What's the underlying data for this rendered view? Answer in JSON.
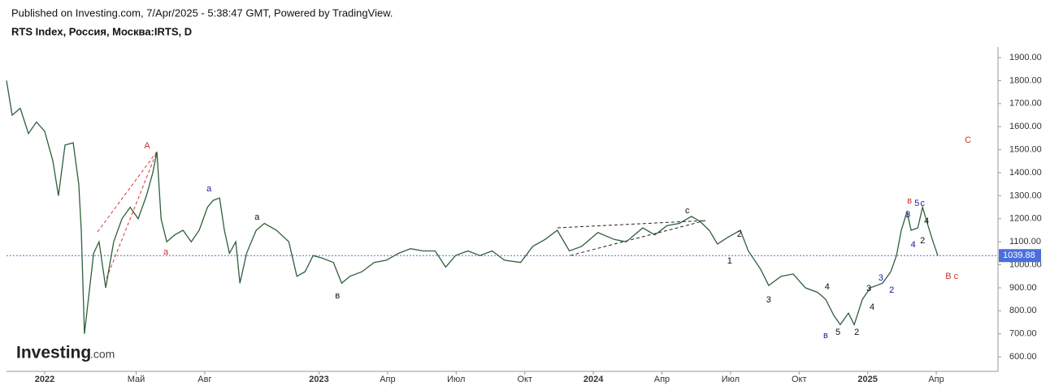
{
  "header": {
    "published": "Published on Investing.com, 7/Apr/2025 - 5:38:47 GMT, Powered by TradingView.",
    "symbol": "RTS Index, Россия, Москва:IRTS, D"
  },
  "watermark": [
    "Investing",
    ".com"
  ],
  "chart_data": {
    "type": "line",
    "x": [
      -1.67,
      -1.42,
      -1.07,
      -0.71,
      -0.36,
      0,
      0.36,
      0.6,
      0.89,
      1.25,
      1.49,
      1.6,
      1.74,
      1.89,
      2.14,
      2.38,
      2.67,
      3.02,
      3.38,
      3.74,
      4.09,
      4.45,
      4.73,
      4.91,
      5.09,
      5.34,
      5.69,
      6.05,
      6.41,
      6.76,
      7.12,
      7.37,
      7.65,
      7.86,
      8.08,
      8.36,
      8.54,
      8.83,
      9.25,
      9.61,
      10.14,
      10.68,
      11.03,
      11.39,
      11.74,
      12.1,
      12.63,
      12.99,
      13.35,
      13.88,
      14.41,
      14.95,
      15.48,
      16.01,
      16.55,
      17.08,
      17.54,
      17.97,
      18.51,
      19.04,
      19.57,
      20.11,
      20.82,
      21.35,
      21.89,
      22.42,
      22.95,
      23.49,
      24.2,
      24.91,
      25.44,
      26.16,
      26.69,
      27.22,
      27.76,
      28.29,
      28.65,
      29.07,
      29.43,
      29.89,
      30.43,
      30.78,
      31.32,
      31.67,
      32.21,
      32.74,
      33.27,
      33.81,
      34.16,
      34.52,
      34.8,
      35.16,
      35.41,
      35.77,
      36.12,
      36.65,
      37.01,
      37.26,
      37.47,
      37.72,
      37.9,
      38.19,
      38.4,
      38.61,
      38.86,
      39.07
    ],
    "series": [
      {
        "color": "#2f5f3a",
        "values": [
          1800,
          1650,
          1680,
          1570,
          1620,
          1580,
          1450,
          1300,
          1520,
          1530,
          1350,
          1150,
          700,
          830,
          1050,
          1100,
          900,
          1100,
          1200,
          1250,
          1200,
          1300,
          1400,
          1490,
          1200,
          1100,
          1130,
          1150,
          1100,
          1150,
          1250,
          1280,
          1290,
          1150,
          1050,
          1100,
          920,
          1050,
          1150,
          1180,
          1150,
          1100,
          950,
          970,
          1040,
          1030,
          1010,
          920,
          950,
          970,
          1010,
          1020,
          1050,
          1070,
          1060,
          1060,
          990,
          1040,
          1060,
          1040,
          1060,
          1020,
          1010,
          1080,
          1110,
          1150,
          1060,
          1080,
          1140,
          1110,
          1100,
          1160,
          1130,
          1170,
          1180,
          1210,
          1190,
          1150,
          1090,
          1120,
          1150,
          1060,
          980,
          910,
          950,
          960,
          900,
          880,
          850,
          780,
          740,
          790,
          740,
          850,
          900,
          920,
          970,
          1040,
          1150,
          1230,
          1150,
          1160,
          1250,
          1180,
          1100,
          1040
        ]
      }
    ],
    "xlim": [
      -1.67,
      41.7
    ],
    "xticks": [
      {
        "value": 0,
        "label": "2022"
      },
      {
        "value": 4,
        "label": "Май"
      },
      {
        "value": 7,
        "label": "Авг"
      },
      {
        "value": 12,
        "label": "2023"
      },
      {
        "value": 15,
        "label": "Апр"
      },
      {
        "value": 18,
        "label": "Июл"
      },
      {
        "value": 21,
        "label": "Окт"
      },
      {
        "value": 24,
        "label": "2024"
      },
      {
        "value": 27,
        "label": "Апр"
      },
      {
        "value": 30,
        "label": "Июл"
      },
      {
        "value": 33,
        "label": "Окт"
      },
      {
        "value": 36,
        "label": "2025"
      },
      {
        "value": 39,
        "label": "Апр"
      }
    ],
    "ylim": [
      537,
      1946
    ],
    "yticks": [
      {
        "value": 600,
        "label": "600.00"
      },
      {
        "value": 700,
        "label": "700.00"
      },
      {
        "value": 800,
        "label": "800.00"
      },
      {
        "value": 900,
        "label": "900.00"
      },
      {
        "value": 1000,
        "label": "1000.00"
      },
      {
        "value": 1100,
        "label": "1100.00"
      },
      {
        "value": 1200,
        "label": "1200.00"
      },
      {
        "value": 1300,
        "label": "1300.00"
      },
      {
        "value": 1400,
        "label": "1400.00"
      },
      {
        "value": 1500,
        "label": "1500.00"
      },
      {
        "value": 1600,
        "label": "1600.00"
      },
      {
        "value": 1700,
        "label": "1700.00"
      },
      {
        "value": 1800,
        "label": "1800.00"
      },
      {
        "value": 1900,
        "label": "1900.00"
      }
    ],
    "last_price": 1039.88,
    "last_price_color": "#4a6fdc",
    "annotations": [
      {
        "text": "A",
        "x": 4.48,
        "y": 1516,
        "color": "#d32f2f"
      },
      {
        "text": "a",
        "x": 5.3,
        "y": 1055,
        "color": "#d32f2f"
      },
      {
        "text": "a",
        "x": 7.19,
        "y": 1330,
        "color": "#1a1aa8"
      },
      {
        "text": "a",
        "x": 9.29,
        "y": 1206,
        "color": "#111111"
      },
      {
        "text": "в",
        "x": 12.81,
        "y": 865,
        "color": "#111111"
      },
      {
        "text": "c",
        "x": 28.11,
        "y": 1234,
        "color": "#111111"
      },
      {
        "text": "1",
        "x": 29.96,
        "y": 1016,
        "color": "#111111"
      },
      {
        "text": "2",
        "x": 30.39,
        "y": 1132,
        "color": "#111111"
      },
      {
        "text": "3",
        "x": 31.67,
        "y": 847,
        "color": "#111111"
      },
      {
        "text": "4",
        "x": 34.23,
        "y": 903,
        "color": "#111111"
      },
      {
        "text": "в",
        "x": 34.16,
        "y": 692,
        "color": "#1a1aa8"
      },
      {
        "text": "5",
        "x": 34.7,
        "y": 706,
        "color": "#111111"
      },
      {
        "text": "2",
        "x": 35.52,
        "y": 706,
        "color": "#111111"
      },
      {
        "text": "3",
        "x": 36.05,
        "y": 896,
        "color": "#111111"
      },
      {
        "text": "4",
        "x": 36.19,
        "y": 815,
        "color": "#111111"
      },
      {
        "text": "3",
        "x": 36.58,
        "y": 942,
        "color": "#1a1aa8"
      },
      {
        "text": "2",
        "x": 37.05,
        "y": 889,
        "color": "#1a1aa8"
      },
      {
        "text": "4",
        "x": 37.99,
        "y": 1087,
        "color": "#1a1aa8"
      },
      {
        "text": "3",
        "x": 37.76,
        "y": 1217,
        "color": "#1a1aa8"
      },
      {
        "text": "в",
        "x": 37.83,
        "y": 1277,
        "color": "#d32f2f"
      },
      {
        "text": "5",
        "x": 38.15,
        "y": 1266,
        "color": "#1a1aa8"
      },
      {
        "text": "c",
        "x": 38.4,
        "y": 1266,
        "color": "#1a1aa8"
      },
      {
        "text": "4",
        "x": 38.58,
        "y": 1189,
        "color": "#111111"
      },
      {
        "text": "2",
        "x": 38.4,
        "y": 1104,
        "color": "#111111"
      },
      {
        "text": "C",
        "x": 40.39,
        "y": 1541,
        "color": "#d32f2f"
      },
      {
        "text": "B c",
        "x": 39.68,
        "y": 949,
        "color": "#d32f2f"
      }
    ]
  }
}
